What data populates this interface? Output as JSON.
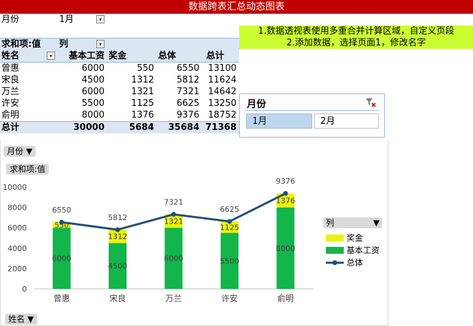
{
  "title": "数据跨表汇总动态图表",
  "page_filter": {
    "label": "月份",
    "value": "1月"
  },
  "instructions": [
    "1.数据透视表使用多重合并计算区域，自定义页段",
    "2.添加数据，选择页面1，修改名字"
  ],
  "pivot": {
    "header_value_label": "求和项:值",
    "header_column_label": "列",
    "row_field_label": "姓名",
    "columns": [
      "基本工资",
      "奖金",
      "总体",
      "总计"
    ],
    "rows": [
      {
        "name": "曾惠",
        "values": [
          "6000",
          "550",
          "6550",
          "13100"
        ]
      },
      {
        "name": "宋良",
        "values": [
          "4500",
          "1312",
          "5812",
          "11624"
        ]
      },
      {
        "name": "万兰",
        "values": [
          "6000",
          "1321",
          "7321",
          "14642"
        ]
      },
      {
        "name": "许安",
        "values": [
          "5500",
          "1125",
          "6625",
          "13250"
        ]
      },
      {
        "name": "俞明",
        "values": [
          "8000",
          "1376",
          "9376",
          "18752"
        ]
      }
    ],
    "total": {
      "label": "总计",
      "values": [
        "30000",
        "5684",
        "35684",
        "71368"
      ]
    }
  },
  "slicer": {
    "title": "月份",
    "items": [
      "1月",
      "2月"
    ],
    "selected": "1月"
  },
  "chart_buttons": {
    "page": "月份",
    "values": "求和项:值",
    "axis": "姓名",
    "legend": "列"
  },
  "colors": {
    "base": "#12b64a",
    "bonus": "#eaf20f",
    "line": "#1f4e79",
    "title_bar": "#c00000",
    "note_bg": "#ccff33"
  },
  "chart_data": {
    "type": "bar",
    "stacked": true,
    "categories": [
      "曾惠",
      "宋良",
      "万兰",
      "许安",
      "俞明"
    ],
    "series": [
      {
        "name": "基本工资",
        "type": "bar",
        "values": [
          6000,
          4500,
          6000,
          5500,
          8000
        ]
      },
      {
        "name": "奖金",
        "type": "bar",
        "values": [
          550,
          1312,
          1321,
          1125,
          1376
        ]
      },
      {
        "name": "总体",
        "type": "line",
        "values": [
          6550,
          5812,
          7321,
          6625,
          9376
        ]
      }
    ],
    "yticks": [
      "0",
      "2000",
      "4000",
      "6000",
      "8000",
      "10000"
    ],
    "ylim": [
      0,
      10000
    ],
    "legend_position": "right"
  }
}
